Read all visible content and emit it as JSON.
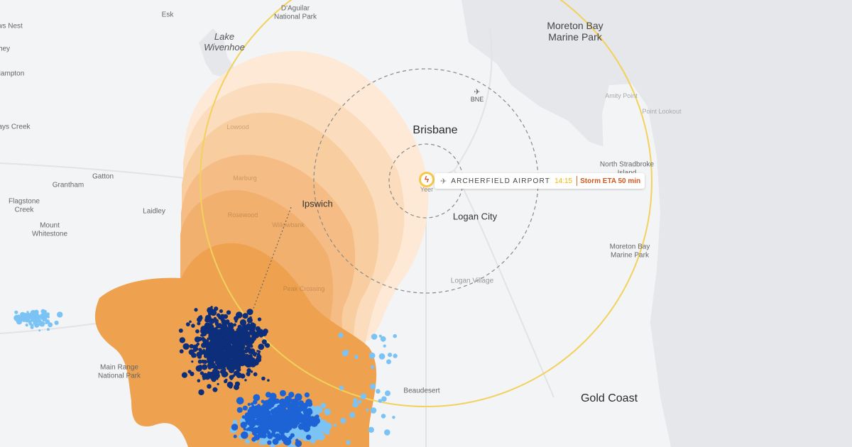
{
  "map": {
    "labels": {
      "esk": "Esk",
      "daguilar": "D'Aguilar\nNational Park",
      "lake_wivenhoe": "Lake\nWivenhoe",
      "moreton_bay_marine_park_top": "Moreton Bay\nMarine Park",
      "ways_nest": "ws Nest",
      "hey": "hey",
      "hampton": "Hampton",
      "lays_creek": "ays Creek",
      "gatton": "Gatton",
      "grantham": "Grantham",
      "flagstone_creek": "Flagstone\nCreek",
      "laidley": "Laidley",
      "mount_whitestone": "Mount\nWhitestone",
      "main_range": "Main Range\nNational Park",
      "lowood": "Lowood",
      "marburg": "Marburg",
      "rosewood": "Rosewood",
      "willowbank": "Willowbank",
      "peak_crossing": "Peak Crossing",
      "ipswich": "Ipswich",
      "brisbane": "Brisbane",
      "bne": "BNE",
      "logan_city": "Logan City",
      "logan_village": "Logan Village",
      "beaudesert": "Beaudesert",
      "gold_coast": "Gold Coast",
      "amity_point": "Amity Point",
      "point_lookout": "Point Lookout",
      "north_stradbroke": "North Stradbroke\nIsland",
      "moreton_bay_marine_park_right": "Moreton Bay\nMarine Park",
      "yeer": "Yeer"
    },
    "airport": {
      "name": "ARCHERFIELD AIRPORT",
      "time": "14:15",
      "eta": "Storm ETA 50 min",
      "pin_icon": "lightning-icon",
      "plane_icon": "plane-icon"
    },
    "colors": {
      "storm_core": "#eea24f",
      "storm_track": "#f5a65b",
      "range_ring": "#f2d15c",
      "lightning_dark": "#0d2e7a",
      "lightning_mid": "#1d63d6",
      "lightning_light": "#7cc3f5",
      "water": "#e5e7eb"
    }
  }
}
